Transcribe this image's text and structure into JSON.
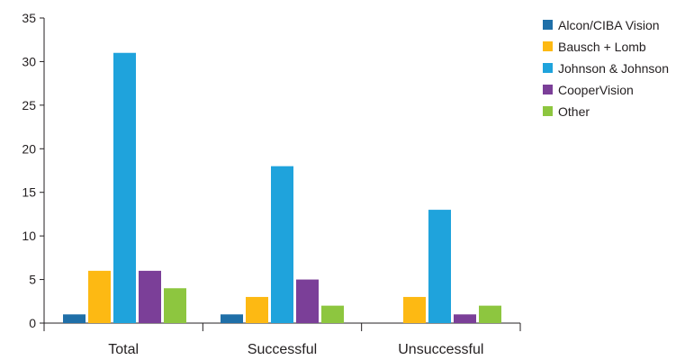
{
  "chart_data": {
    "type": "bar",
    "title": "",
    "xlabel": "",
    "ylabel": "",
    "categories": [
      "Total",
      "Successful",
      "Unsuccessful"
    ],
    "ylim": [
      0,
      35
    ],
    "yticks": [
      0,
      5,
      10,
      15,
      20,
      25,
      30,
      35
    ],
    "grid": false,
    "legend_position": "top-right",
    "series": [
      {
        "name": "Alcon/CIBA Vision",
        "color": "#1f6fa8",
        "values": [
          1,
          1,
          0
        ]
      },
      {
        "name": "Bausch + Lomb",
        "color": "#fdb913",
        "values": [
          6,
          3,
          3
        ]
      },
      {
        "name": "Johnson & Johnson",
        "color": "#1fa3dc",
        "values": [
          31,
          18,
          13
        ]
      },
      {
        "name": "CooperVision",
        "color": "#7b3f98",
        "values": [
          6,
          5,
          1
        ]
      },
      {
        "name": "Other",
        "color": "#8dc63f",
        "values": [
          4,
          2,
          2
        ]
      }
    ]
  }
}
